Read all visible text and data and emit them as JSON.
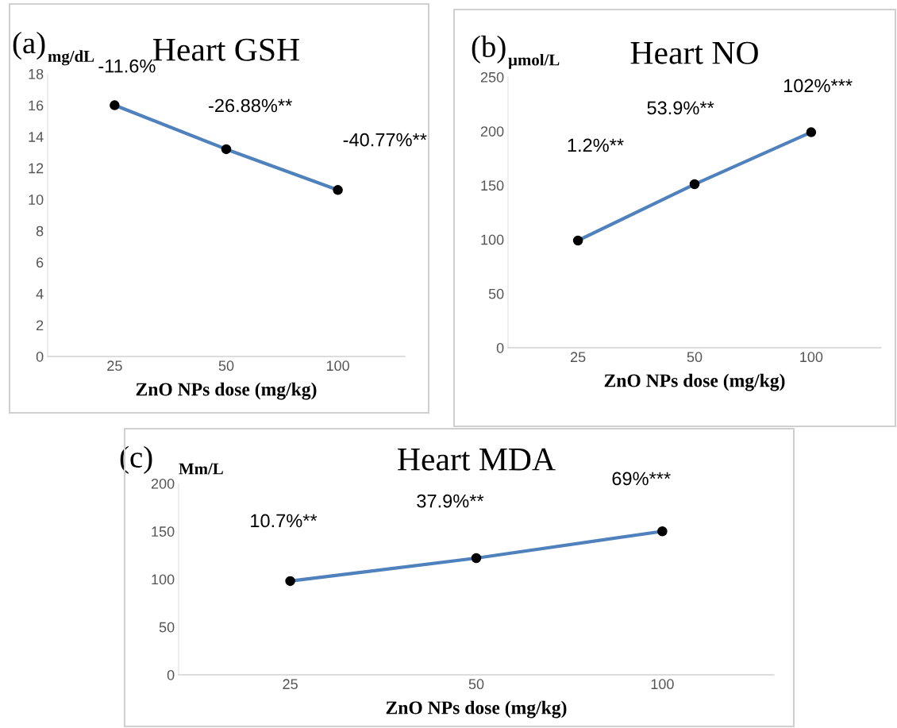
{
  "chart_data": [
    {
      "type": "line",
      "title": "Heart GSH",
      "ylabel": "mg/dL",
      "xlabel": "ZnO NPs dose (mg/kg)",
      "categories": [
        "25",
        "50",
        "100"
      ],
      "series": [
        {
          "color": "#4f81bd",
          "values": [
            16.0,
            13.2,
            10.6
          ]
        }
      ],
      "ylim": [
        0,
        18
      ],
      "yticks": [
        0,
        2,
        4,
        6,
        8,
        10,
        12,
        14,
        16,
        18
      ],
      "marker": "circle",
      "grid": false,
      "annotations": [
        "(a)",
        "-11.6%",
        "-26.88%**",
        "-40.77%**"
      ]
    },
    {
      "type": "line",
      "title": "Heart NO",
      "ylabel": "µmol/L",
      "xlabel": "ZnO NPs dose (mg/kg)",
      "categories": [
        "25",
        "50",
        "100"
      ],
      "series": [
        {
          "color": "#4f81bd",
          "values": [
            99,
            151,
            199
          ]
        }
      ],
      "ylim": [
        0,
        250
      ],
      "yticks": [
        0,
        50,
        100,
        150,
        200,
        250
      ],
      "marker": "circle",
      "grid": false,
      "annotations": [
        "(b)",
        "1.2%**",
        "53.9%**",
        "102%***"
      ]
    },
    {
      "type": "line",
      "title": "Heart MDA",
      "ylabel": "Mm/L",
      "xlabel": "ZnO NPs dose (mg/kg)",
      "categories": [
        "25",
        "50",
        "100"
      ],
      "series": [
        {
          "color": "#4f81bd",
          "values": [
            98,
            122,
            150
          ]
        }
      ],
      "ylim": [
        0,
        200
      ],
      "yticks": [
        0,
        50,
        100,
        150,
        200
      ],
      "marker": "circle",
      "grid": false,
      "annotations": [
        "(c)",
        "10.7%**",
        "37.9%**",
        "69%***"
      ]
    }
  ]
}
